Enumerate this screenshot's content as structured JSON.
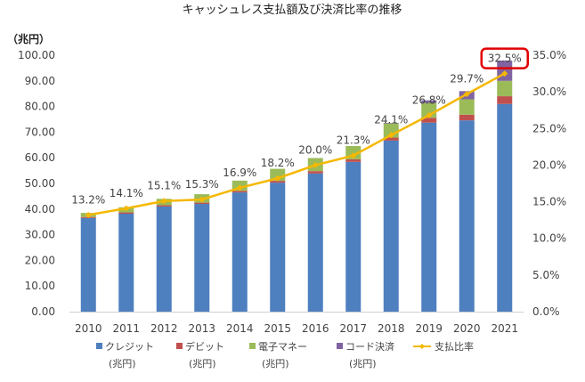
{
  "chart_data": {
    "type": "bar",
    "subtype": "stacked-bar-with-line",
    "title": "キャッシュレス支払額及び決済比率の推移",
    "ylabel_left": "（兆円）",
    "categories": [
      "2010",
      "2011",
      "2012",
      "2013",
      "2014",
      "2015",
      "2016",
      "2017",
      "2018",
      "2019",
      "2020",
      "2021"
    ],
    "series": [
      {
        "name": "クレジット",
        "name_line2": "(兆円)",
        "type": "bar",
        "axis": "left",
        "color": "#4e7fbf",
        "values": [
          36.5,
          38.2,
          41.0,
          42.0,
          46.5,
          50.3,
          53.9,
          58.4,
          66.7,
          73.7,
          74.6,
          81.0
        ]
      },
      {
        "name": "デビット",
        "name_line2": "(兆円)",
        "type": "bar",
        "axis": "left",
        "color": "#c0504d",
        "values": [
          0.4,
          0.5,
          0.5,
          0.5,
          0.6,
          0.7,
          0.9,
          1.0,
          1.2,
          1.9,
          2.2,
          3.0
        ]
      },
      {
        "name": "電子マネー",
        "name_line2": "(兆円)",
        "type": "bar",
        "axis": "left",
        "color": "#9bbb59",
        "values": [
          1.6,
          2.0,
          2.5,
          3.3,
          4.0,
          4.7,
          5.1,
          5.2,
          5.5,
          5.8,
          6.0,
          6.0
        ]
      },
      {
        "name": "コード決済",
        "name_line2": "(兆円)",
        "type": "bar",
        "axis": "left",
        "color": "#8064a2",
        "values": [
          0,
          0,
          0,
          0,
          0,
          0,
          0,
          0,
          0.2,
          1.0,
          3.2,
          7.9
        ]
      },
      {
        "name": "支払比率",
        "type": "line",
        "axis": "right",
        "color": "#f5b800",
        "values": [
          13.2,
          14.1,
          15.1,
          15.3,
          16.9,
          18.2,
          20.0,
          21.3,
          24.1,
          26.8,
          29.7,
          32.5
        ],
        "labels": [
          "13.2%",
          "14.1%",
          "15.1%",
          "15.3%",
          "16.9%",
          "18.2%",
          "20.0%",
          "21.3%",
          "24.1%",
          "26.8%",
          "29.7%",
          "32.5%"
        ]
      }
    ],
    "ylim_left": [
      0,
      100
    ],
    "ylim_right": [
      0,
      35
    ],
    "yticks_left": [
      "0.00",
      "10.00",
      "20.00",
      "30.00",
      "40.00",
      "50.00",
      "60.00",
      "70.00",
      "80.00",
      "90.00",
      "100.00"
    ],
    "yticks_right": [
      "0.0%",
      "5.0%",
      "10.0%",
      "15.0%",
      "20.0%",
      "25.0%",
      "30.0%",
      "35.0%"
    ],
    "grid": false,
    "legend_position": "bottom",
    "highlight": {
      "index": 11,
      "color": "#e00000"
    }
  }
}
